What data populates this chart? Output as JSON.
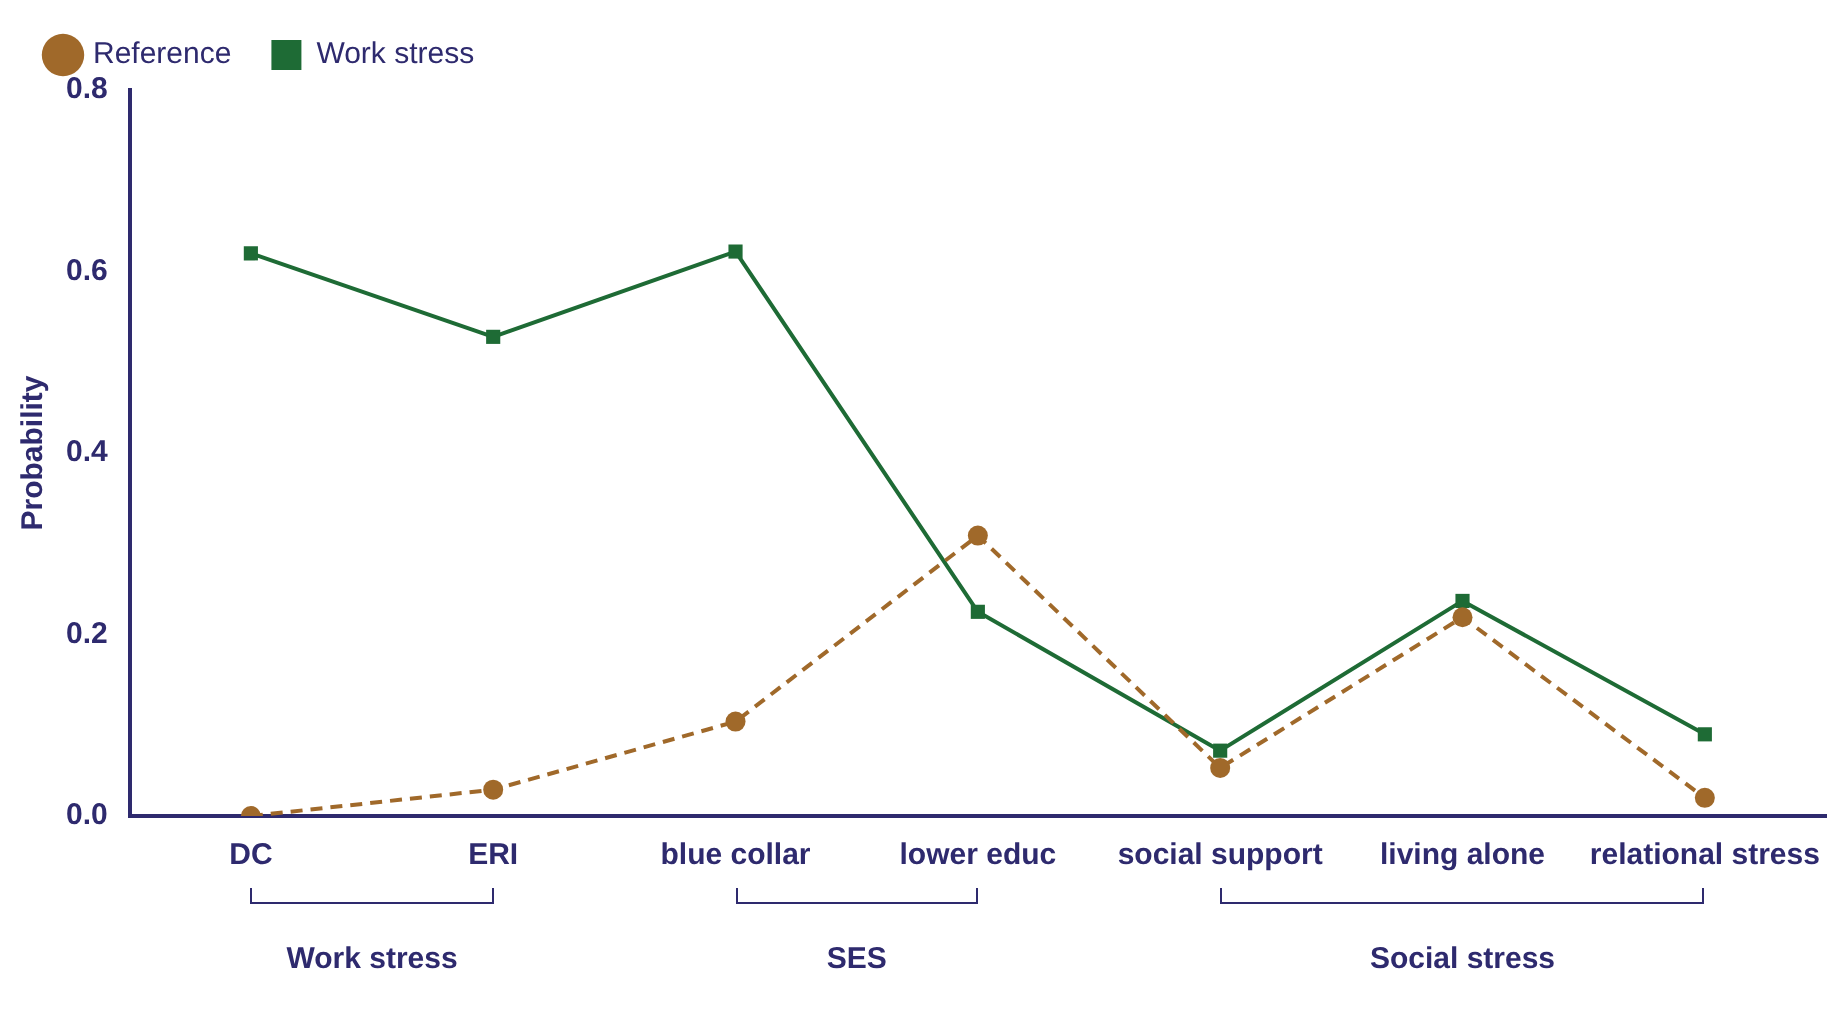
{
  "chart_data": {
    "type": "line",
    "ylabel": "Probability",
    "categories": [
      "DC",
      "ERI",
      "blue collar",
      "lower educ",
      "social support",
      "living alone",
      "relational stress"
    ],
    "series": [
      {
        "name": "Reference",
        "color": "#a0692a",
        "line_style": "dashed",
        "marker": "circle",
        "values": [
          0,
          0.029,
          0.104,
          0.309,
          0.053,
          0.219,
          0.02
        ]
      },
      {
        "name": "Work stress",
        "color": "#1e6b35",
        "line_style": "solid",
        "marker": "square",
        "values": [
          0.62,
          0.528,
          0.622,
          0.225,
          0.072,
          0.237,
          0.09
        ]
      }
    ],
    "ylim": [
      0,
      0.8
    ],
    "yticks": [
      {
        "value": 0,
        "label": "0.0"
      },
      {
        "value": 0.2,
        "label": "0.2"
      },
      {
        "value": 0.4,
        "label": "0.4"
      },
      {
        "value": 0.6,
        "label": "0.6"
      },
      {
        "value": 0.8,
        "label": "0.8"
      }
    ],
    "grid": false,
    "legend": "top left",
    "annotations": [
      "Work stress",
      "SES",
      "Social stress"
    ]
  }
}
